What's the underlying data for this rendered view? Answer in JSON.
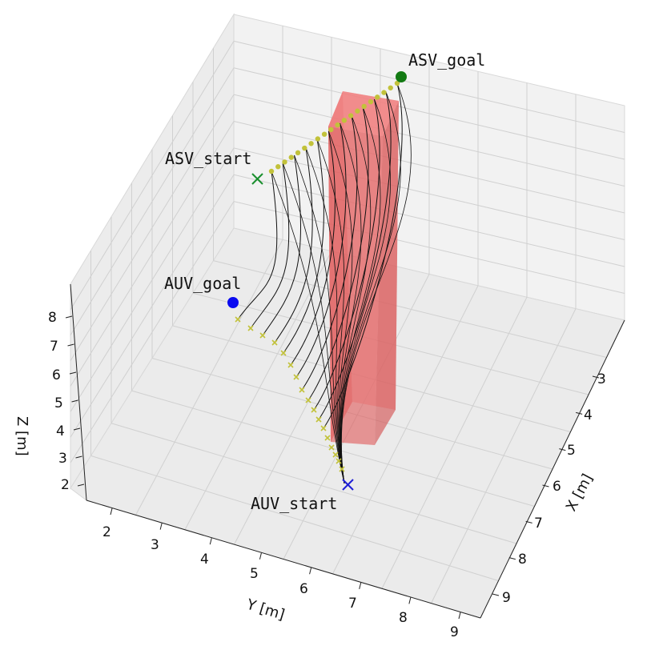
{
  "chart_data": {
    "type": "3d-line",
    "xlabel": "X [m]",
    "ylabel": "Y [m]",
    "zlabel": "Z [m]",
    "x_ticks": [
      "3",
      "4",
      "5",
      "6",
      "7",
      "8",
      "9"
    ],
    "y_ticks": [
      "2",
      "3",
      "4",
      "5",
      "6",
      "7",
      "8",
      "9"
    ],
    "z_ticks": [
      "2",
      "3",
      "4",
      "5",
      "6",
      "7",
      "8"
    ],
    "grid": true,
    "annotations": {
      "asv_start": "ASV_start",
      "asv_goal": "ASV_goal",
      "auv_start": "AUV_start",
      "auv_goal": "AUV_goal"
    },
    "markers": {
      "asv_start": {
        "shape": "x",
        "color": "#1a8f2e"
      },
      "asv_goal": {
        "shape": "circle",
        "color": "#137a13"
      },
      "auv_start": {
        "shape": "x",
        "color": "#1f1fd6"
      },
      "auv_goal": {
        "shape": "circle",
        "color": "#0a0af0"
      }
    },
    "trajectory_count": 12,
    "obstacle": {
      "shape": "box",
      "color": "#e03030"
    },
    "colors": {
      "pane": "#f2f2f2",
      "grid": "#d0d0d0",
      "trajectory": "#111111",
      "waypoint": "#c2c23a"
    }
  }
}
